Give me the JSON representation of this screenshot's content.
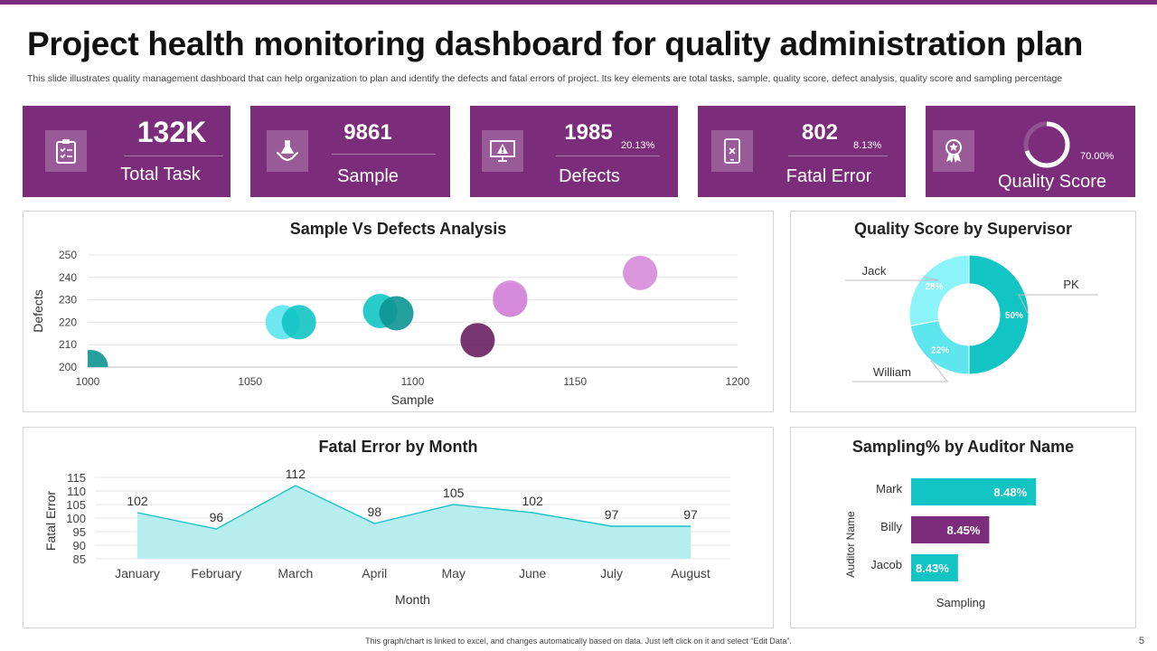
{
  "header": {
    "title": "Project health monitoring dashboard for quality administration plan",
    "subtitle": "This slide illustrates quality management dashboard that can help organization to plan and identify the defects and fatal errors of project. Its key elements are total tasks, sample, quality score, defect analysis, quality score and sampling percentage"
  },
  "kpis": {
    "total_task": {
      "value": "132K",
      "label": "Total Task",
      "icon": "clipboard-checklist-icon"
    },
    "sample": {
      "value": "9861",
      "label": "Sample",
      "icon": "hands-flask-icon"
    },
    "defects": {
      "value": "1985",
      "label": "Defects",
      "percent": "20.13%",
      "icon": "monitor-warning-icon"
    },
    "fatal_error": {
      "value": "802",
      "label": "Fatal Error",
      "percent": "8.13%",
      "icon": "mobile-error-icon"
    },
    "quality_score": {
      "label": "Quality Score",
      "percent": "70.00%",
      "fraction": 0.7,
      "icon": "award-medal-icon"
    }
  },
  "colors": {
    "purple": "#7b2d7b",
    "teal": "#12c4c4",
    "teal_light": "#5ee6ee",
    "teal_pale": "#8cf3f8",
    "dark_teal": "#0d9494",
    "dark_purple": "#6a1e63",
    "pink": "#d68bd9"
  },
  "chart_data": [
    {
      "type": "scatter",
      "title": "Sample Vs Defects Analysis",
      "xlabel": "Sample",
      "ylabel": "Defects",
      "xlim": [
        1000,
        1200
      ],
      "ylim": [
        200,
        250
      ],
      "xticks": [
        "1000",
        "1050",
        "1100",
        "1150",
        "1200"
      ],
      "yticks": [
        "200",
        "210",
        "220",
        "230",
        "240",
        "250"
      ],
      "points": [
        {
          "x": 1001,
          "y": 200,
          "color": "#0d9494"
        },
        {
          "x": 1060,
          "y": 220,
          "color": "#5ee6ee"
        },
        {
          "x": 1065,
          "y": 220,
          "color": "#12c4c4"
        },
        {
          "x": 1090,
          "y": 225,
          "color": "#12c4c4"
        },
        {
          "x": 1095,
          "y": 224,
          "color": "#0d9494"
        },
        {
          "x": 1120,
          "y": 212,
          "color": "#6a1e63"
        },
        {
          "x": 1130,
          "y": 230,
          "color": "#c77fcf"
        },
        {
          "x": 1130,
          "y": 231,
          "color": "#d68bd9"
        },
        {
          "x": 1170,
          "y": 242,
          "color": "#d68bd9"
        }
      ]
    },
    {
      "type": "pie",
      "title": "Quality Score by Supervisor",
      "labels": [
        "PK",
        "William",
        "Jack"
      ],
      "values": [
        50,
        22,
        28
      ],
      "value_labels": [
        "50%",
        "22%",
        "28%"
      ],
      "colors": [
        "#12c4c4",
        "#5ee6ee",
        "#8cf3f8"
      ]
    },
    {
      "type": "area",
      "title": "Fatal Error by Month",
      "xlabel": "Month",
      "ylabel": "Fatal Error",
      "categories": [
        "January",
        "February",
        "March",
        "April",
        "May",
        "June",
        "July",
        "August"
      ],
      "values": [
        102,
        96,
        112,
        98,
        105,
        102,
        97,
        97
      ],
      "ylim": [
        85,
        115
      ],
      "yticks": [
        "85",
        "90",
        "95",
        "100",
        "105",
        "110",
        "115"
      ]
    },
    {
      "type": "bar",
      "title": "Sampling% by Auditor Name",
      "xlabel": "Sampling",
      "ylabel": "Auditor Name",
      "categories": [
        "Mark",
        "Billy",
        "Jacob"
      ],
      "values": [
        8.48,
        8.45,
        8.43
      ],
      "value_labels": [
        "8.48%",
        "8.45%",
        "8.43%"
      ],
      "colors": [
        "#12c4c4",
        "#7b2d7b",
        "#12c4c4"
      ],
      "xlim": [
        8.4,
        8.5
      ]
    }
  ],
  "footer": {
    "note": "This graph/chart is linked to excel, and changes automatically based on data. Just left click on it and select “Edit Data”.",
    "page_number": "5"
  }
}
